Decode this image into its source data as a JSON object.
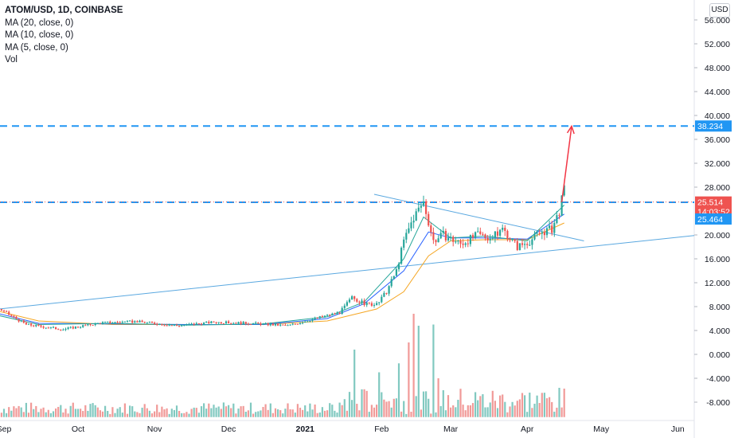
{
  "header": {
    "title": "ATOM/USD, 1D, COINBASE",
    "legend": [
      "MA (20, close, 0)",
      "MA (10, close, 0)",
      "MA (5, close, 0)",
      "Vol"
    ],
    "currency": "USD"
  },
  "chart_data": {
    "type": "candlestick",
    "symbol": "ATOM/USD",
    "interval": "1D",
    "exchange": "COINBASE",
    "ylim": [
      -11,
      57
    ],
    "y_ticks": [
      56,
      52,
      48,
      44,
      40,
      36,
      32,
      28,
      20,
      16,
      12,
      8,
      4,
      0,
      -4,
      -8
    ],
    "y_tick_labels": [
      "56.000",
      "52.000",
      "48.000",
      "44.000",
      "40.000",
      "36.000",
      "32.000",
      "28.000",
      "20.000",
      "16.000",
      "12.000",
      "8.000",
      "4.000",
      "0.000",
      "-4.000",
      "-8.000"
    ],
    "x_labels": [
      "Sep",
      "Oct",
      "Nov",
      "Dec",
      "2021",
      "Feb",
      "Mar",
      "Apr",
      "May",
      "Jun"
    ],
    "price_labels": [
      {
        "value": "38.234",
        "color": "#2196f3"
      },
      {
        "value": "25.514",
        "sub": "14:03:52",
        "color": "#ef5350"
      },
      {
        "value": "25.464",
        "color": "#2196f3"
      }
    ],
    "horizontal_levels": [
      38.234,
      25.464
    ],
    "trendlines": [
      {
        "from": [
          "Aug 30, 2020",
          7.6
        ],
        "to": [
          "end",
          19.9
        ]
      },
      {
        "from": [
          "Jan 29, 2021",
          26.8
        ],
        "to": [
          "Apr 24, 2021",
          19.0
        ]
      }
    ],
    "projection_arrow": {
      "from": [
        "Apr 15, 2021",
        25.5
      ],
      "to": [
        "Apr 19, 2021",
        38.2
      ]
    },
    "price_path": [
      {
        "x": "Aug 30, 2020",
        "v": 7.6
      },
      {
        "x": "Sep 10, 2020",
        "v": 5.0
      },
      {
        "x": "Sep 25, 2020",
        "v": 4.2
      },
      {
        "x": "Oct 10, 2020",
        "v": 5.3
      },
      {
        "x": "Oct 25, 2020",
        "v": 5.5
      },
      {
        "x": "Nov 10, 2020",
        "v": 4.8
      },
      {
        "x": "Nov 25, 2020",
        "v": 5.4
      },
      {
        "x": "Dec 10, 2020",
        "v": 5.2
      },
      {
        "x": "Dec 25, 2020",
        "v": 4.8
      },
      {
        "x": "Jan 05, 2021",
        "v": 6.0
      },
      {
        "x": "Jan 15, 2021",
        "v": 7.0
      },
      {
        "x": "Jan 20, 2021",
        "v": 9.5
      },
      {
        "x": "Jan 25, 2021",
        "v": 8.5
      },
      {
        "x": "Jan 30, 2021",
        "v": 8.3
      },
      {
        "x": "Feb 03, 2021",
        "v": 10.5
      },
      {
        "x": "Feb 07, 2021",
        "v": 14.0
      },
      {
        "x": "Feb 10, 2021",
        "v": 19.0
      },
      {
        "x": "Feb 14, 2021",
        "v": 23.0
      },
      {
        "x": "Feb 18, 2021",
        "v": 25.5
      },
      {
        "x": "Feb 22, 2021",
        "v": 19.0
      },
      {
        "x": "Feb 26, 2021",
        "v": 20.0
      },
      {
        "x": "Mar 05, 2021",
        "v": 18.5
      },
      {
        "x": "Mar 12, 2021",
        "v": 20.0
      },
      {
        "x": "Mar 18, 2021",
        "v": 19.5
      },
      {
        "x": "Mar 22, 2021",
        "v": 21.0
      },
      {
        "x": "Mar 28, 2021",
        "v": 18.0
      },
      {
        "x": "Apr 02, 2021",
        "v": 19.0
      },
      {
        "x": "Apr 07, 2021",
        "v": 20.5
      },
      {
        "x": "Apr 11, 2021",
        "v": 21.0
      },
      {
        "x": "Apr 14, 2021",
        "v": 24.0
      },
      {
        "x": "Apr 16, 2021",
        "v": 27.5
      }
    ],
    "ma_series": [
      {
        "period": 20,
        "color": "#f5a623",
        "points": [
          [
            "Aug 30, 2020",
            7.2
          ],
          [
            "Sep 15, 2020",
            5.6
          ],
          [
            "Oct 15, 2020",
            5.0
          ],
          [
            "Nov 15, 2020",
            5.0
          ],
          [
            "Dec 15, 2020",
            5.0
          ],
          [
            "Jan 10, 2021",
            5.6
          ],
          [
            "Jan 30, 2021",
            7.6
          ],
          [
            "Feb 10, 2021",
            10.5
          ],
          [
            "Feb 20, 2021",
            16.5
          ],
          [
            "Mar 01, 2021",
            19.0
          ],
          [
            "Mar 15, 2021",
            19.2
          ],
          [
            "Apr 01, 2021",
            19.2
          ],
          [
            "Apr 16, 2021",
            22.0
          ]
        ]
      },
      {
        "period": 10,
        "color": "#2962ff",
        "points": [
          [
            "Aug 30, 2020",
            6.8
          ],
          [
            "Sep 15, 2020",
            5.2
          ],
          [
            "Oct 15, 2020",
            5.1
          ],
          [
            "Nov 15, 2020",
            5.0
          ],
          [
            "Dec 15, 2020",
            5.0
          ],
          [
            "Jan 10, 2021",
            6.0
          ],
          [
            "Jan 25, 2021",
            8.5
          ],
          [
            "Feb 10, 2021",
            14.0
          ],
          [
            "Feb 20, 2021",
            20.5
          ],
          [
            "Mar 01, 2021",
            19.5
          ],
          [
            "Mar 15, 2021",
            19.5
          ],
          [
            "Apr 01, 2021",
            19.3
          ],
          [
            "Apr 16, 2021",
            23.5
          ]
        ]
      },
      {
        "period": 5,
        "color": "#26a69a",
        "points": [
          [
            "Aug 30, 2020",
            6.5
          ],
          [
            "Sep 15, 2020",
            5.0
          ],
          [
            "Oct 15, 2020",
            5.2
          ],
          [
            "Nov 15, 2020",
            4.9
          ],
          [
            "Dec 15, 2020",
            5.1
          ],
          [
            "Jan 10, 2021",
            6.3
          ],
          [
            "Jan 25, 2021",
            8.8
          ],
          [
            "Feb 10, 2021",
            16.0
          ],
          [
            "Feb 18, 2021",
            23.0
          ],
          [
            "Mar 01, 2021",
            19.5
          ],
          [
            "Mar 15, 2021",
            19.8
          ],
          [
            "Apr 01, 2021",
            19.0
          ],
          [
            "Apr 16, 2021",
            25.0
          ]
        ]
      }
    ],
    "volume_baseline": -10.5,
    "volume_spikes": [
      {
        "x": "Jan 21, 2021",
        "top": 0.8
      },
      {
        "x": "Jan 31, 2021",
        "top": -3.0
      },
      {
        "x": "Feb 08, 2021",
        "top": -1.5
      },
      {
        "x": "Feb 12, 2021",
        "top": 2.0
      },
      {
        "x": "Feb 14, 2021",
        "top": 6.8
      },
      {
        "x": "Feb 16, 2021",
        "top": 4.8
      },
      {
        "x": "Feb 22, 2021",
        "top": 5.0
      },
      {
        "x": "Feb 24, 2021",
        "top": -4.0
      },
      {
        "x": "Feb 26, 2021",
        "top": -6.0
      }
    ]
  }
}
